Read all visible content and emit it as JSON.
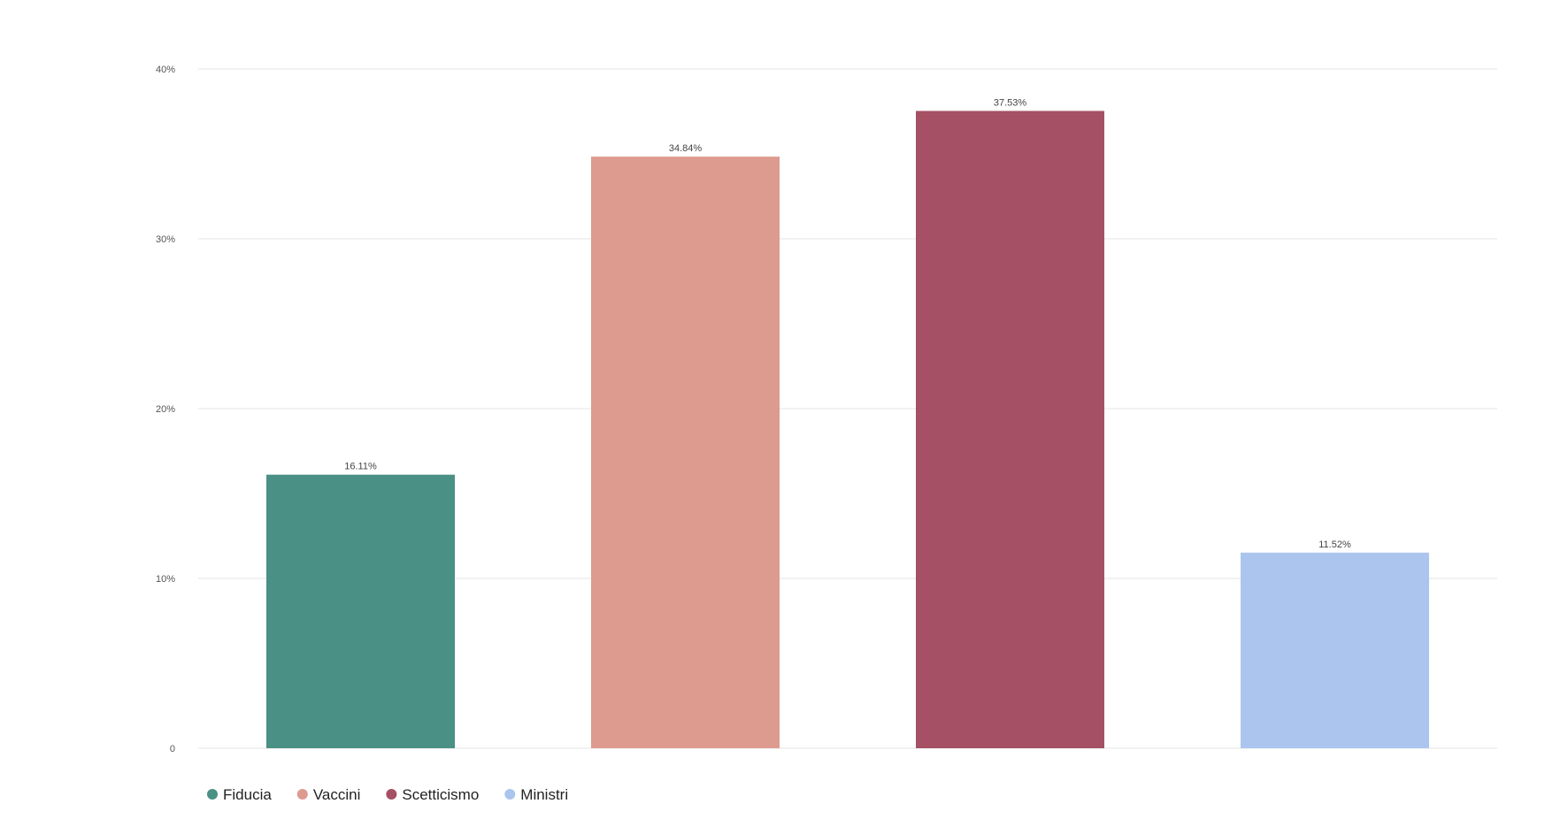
{
  "chart_data": {
    "type": "bar",
    "categories": [
      "Fiducia",
      "Vaccini",
      "Scetticismo",
      "Ministri"
    ],
    "values": [
      16.11,
      34.84,
      37.53,
      11.52
    ],
    "data_labels": [
      "16.11%",
      "34.84%",
      "37.53%",
      "11.52%"
    ],
    "colors": [
      "#4a9085",
      "#dd9b8f",
      "#a55064",
      "#abc5ee"
    ],
    "title": "",
    "xlabel": "",
    "ylabel": "",
    "ylim": [
      0,
      40
    ],
    "y_ticks": [
      0,
      10,
      20,
      30,
      40
    ],
    "y_tick_labels": [
      "0",
      "10%",
      "20%",
      "30%",
      "40%"
    ],
    "grid": true,
    "legend": {
      "placement": "bottom-left",
      "entries": [
        "Fiducia",
        "Vaccini",
        "Scetticismo",
        "Ministri"
      ]
    }
  }
}
